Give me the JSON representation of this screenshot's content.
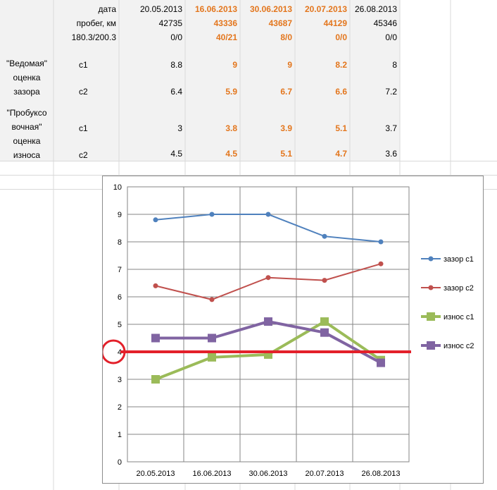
{
  "table": {
    "dates_label": "дата",
    "mileage_label": "пробег, км",
    "wear_label": "180.3/200.3",
    "dates": [
      "20.05.2013",
      "16.06.2013",
      "30.06.2013",
      "20.07.2013",
      "26.08.2013"
    ],
    "mileage": [
      "42735",
      "43336",
      "43687",
      "44129",
      "45346"
    ],
    "wear": [
      "0/0",
      "40/21",
      "8/0",
      "0/0",
      "0/0"
    ],
    "highlight_color": "#e3761d",
    "groups": [
      {
        "name_lines": [
          "\"Ведомая\"",
          "оценка",
          "зазора"
        ],
        "rows": [
          {
            "label": "с1",
            "values": [
              "8.8",
              "9",
              "9",
              "8.2",
              "8"
            ]
          },
          {
            "label": "с2",
            "values": [
              "6.4",
              "5.9",
              "6.7",
              "6.6",
              "7.2"
            ]
          }
        ]
      },
      {
        "name_lines": [
          "\"Пробуксо",
          "вочная\"",
          "оценка",
          "износа"
        ],
        "rows": [
          {
            "label": "с1",
            "values": [
              "3",
              "3.8",
              "3.9",
              "5.1",
              "3.7"
            ]
          },
          {
            "label": "с2",
            "values": [
              "4.5",
              "4.5",
              "5.1",
              "4.7",
              "3.6"
            ]
          }
        ]
      }
    ]
  },
  "chart_data": {
    "type": "line",
    "categories": [
      "20.05.2013",
      "16.06.2013",
      "30.06.2013",
      "20.07.2013",
      "26.08.2013"
    ],
    "ylim": [
      0,
      10
    ],
    "yticks": [
      "0",
      "1",
      "2",
      "3",
      "4",
      "5",
      "6",
      "7",
      "8",
      "9",
      "10"
    ],
    "grid": true,
    "legend_position": "right",
    "series": [
      {
        "name": "зазор с1",
        "values": [
          8.8,
          9,
          9,
          8.2,
          8
        ],
        "color": "#4f81bd",
        "marker": "circle"
      },
      {
        "name": "зазор с2",
        "values": [
          6.4,
          5.9,
          6.7,
          6.6,
          7.2
        ],
        "color": "#c0504d",
        "marker": "circle"
      },
      {
        "name": "износ с1",
        "values": [
          3,
          3.8,
          3.9,
          5.1,
          3.7
        ],
        "color": "#9bbb59",
        "marker": "square"
      },
      {
        "name": "износ с2",
        "values": [
          4.5,
          4.5,
          5.1,
          4.7,
          3.6
        ],
        "color": "#8064a2",
        "marker": "square"
      }
    ],
    "annotation": {
      "threshold_value": 4,
      "line_color": "#e3202a"
    }
  }
}
